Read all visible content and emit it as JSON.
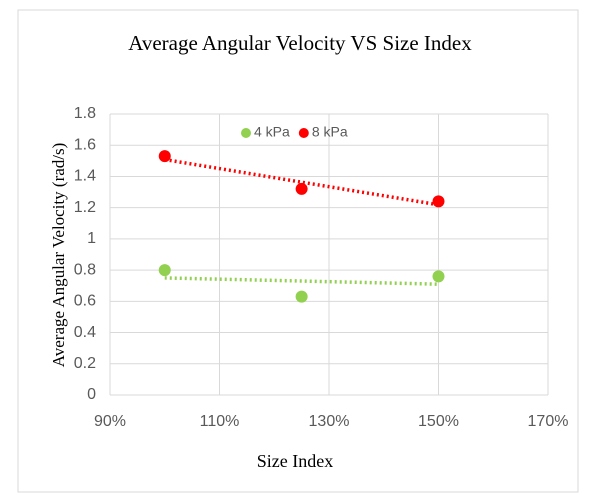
{
  "chart_data": {
    "type": "scatter",
    "title": "Average Angular Velocity VS Size Index",
    "xlabel": "Size Index",
    "ylabel": "Average Angular Velocity (rad/s)",
    "x": [
      100,
      125,
      150
    ],
    "series": [
      {
        "name": "4 kPa",
        "color": "#92d050",
        "values": [
          0.8,
          0.63,
          0.76
        ]
      },
      {
        "name": "8 kPa",
        "color": "#ff0000",
        "values": [
          1.53,
          1.32,
          1.24
        ]
      }
    ],
    "xlim": [
      90,
      170
    ],
    "xticks": [
      {
        "value": 90,
        "label": "90%"
      },
      {
        "value": 110,
        "label": "110%"
      },
      {
        "value": 130,
        "label": "130%"
      },
      {
        "value": 150,
        "label": "150%"
      },
      {
        "value": 170,
        "label": "170%"
      }
    ],
    "ylim": [
      0,
      1.8
    ],
    "yticks": [
      0,
      0.2,
      0.4,
      0.6,
      0.8,
      1,
      1.2,
      1.4,
      1.6,
      1.8
    ],
    "grid": true,
    "legend": "top",
    "trendline": "linear"
  }
}
